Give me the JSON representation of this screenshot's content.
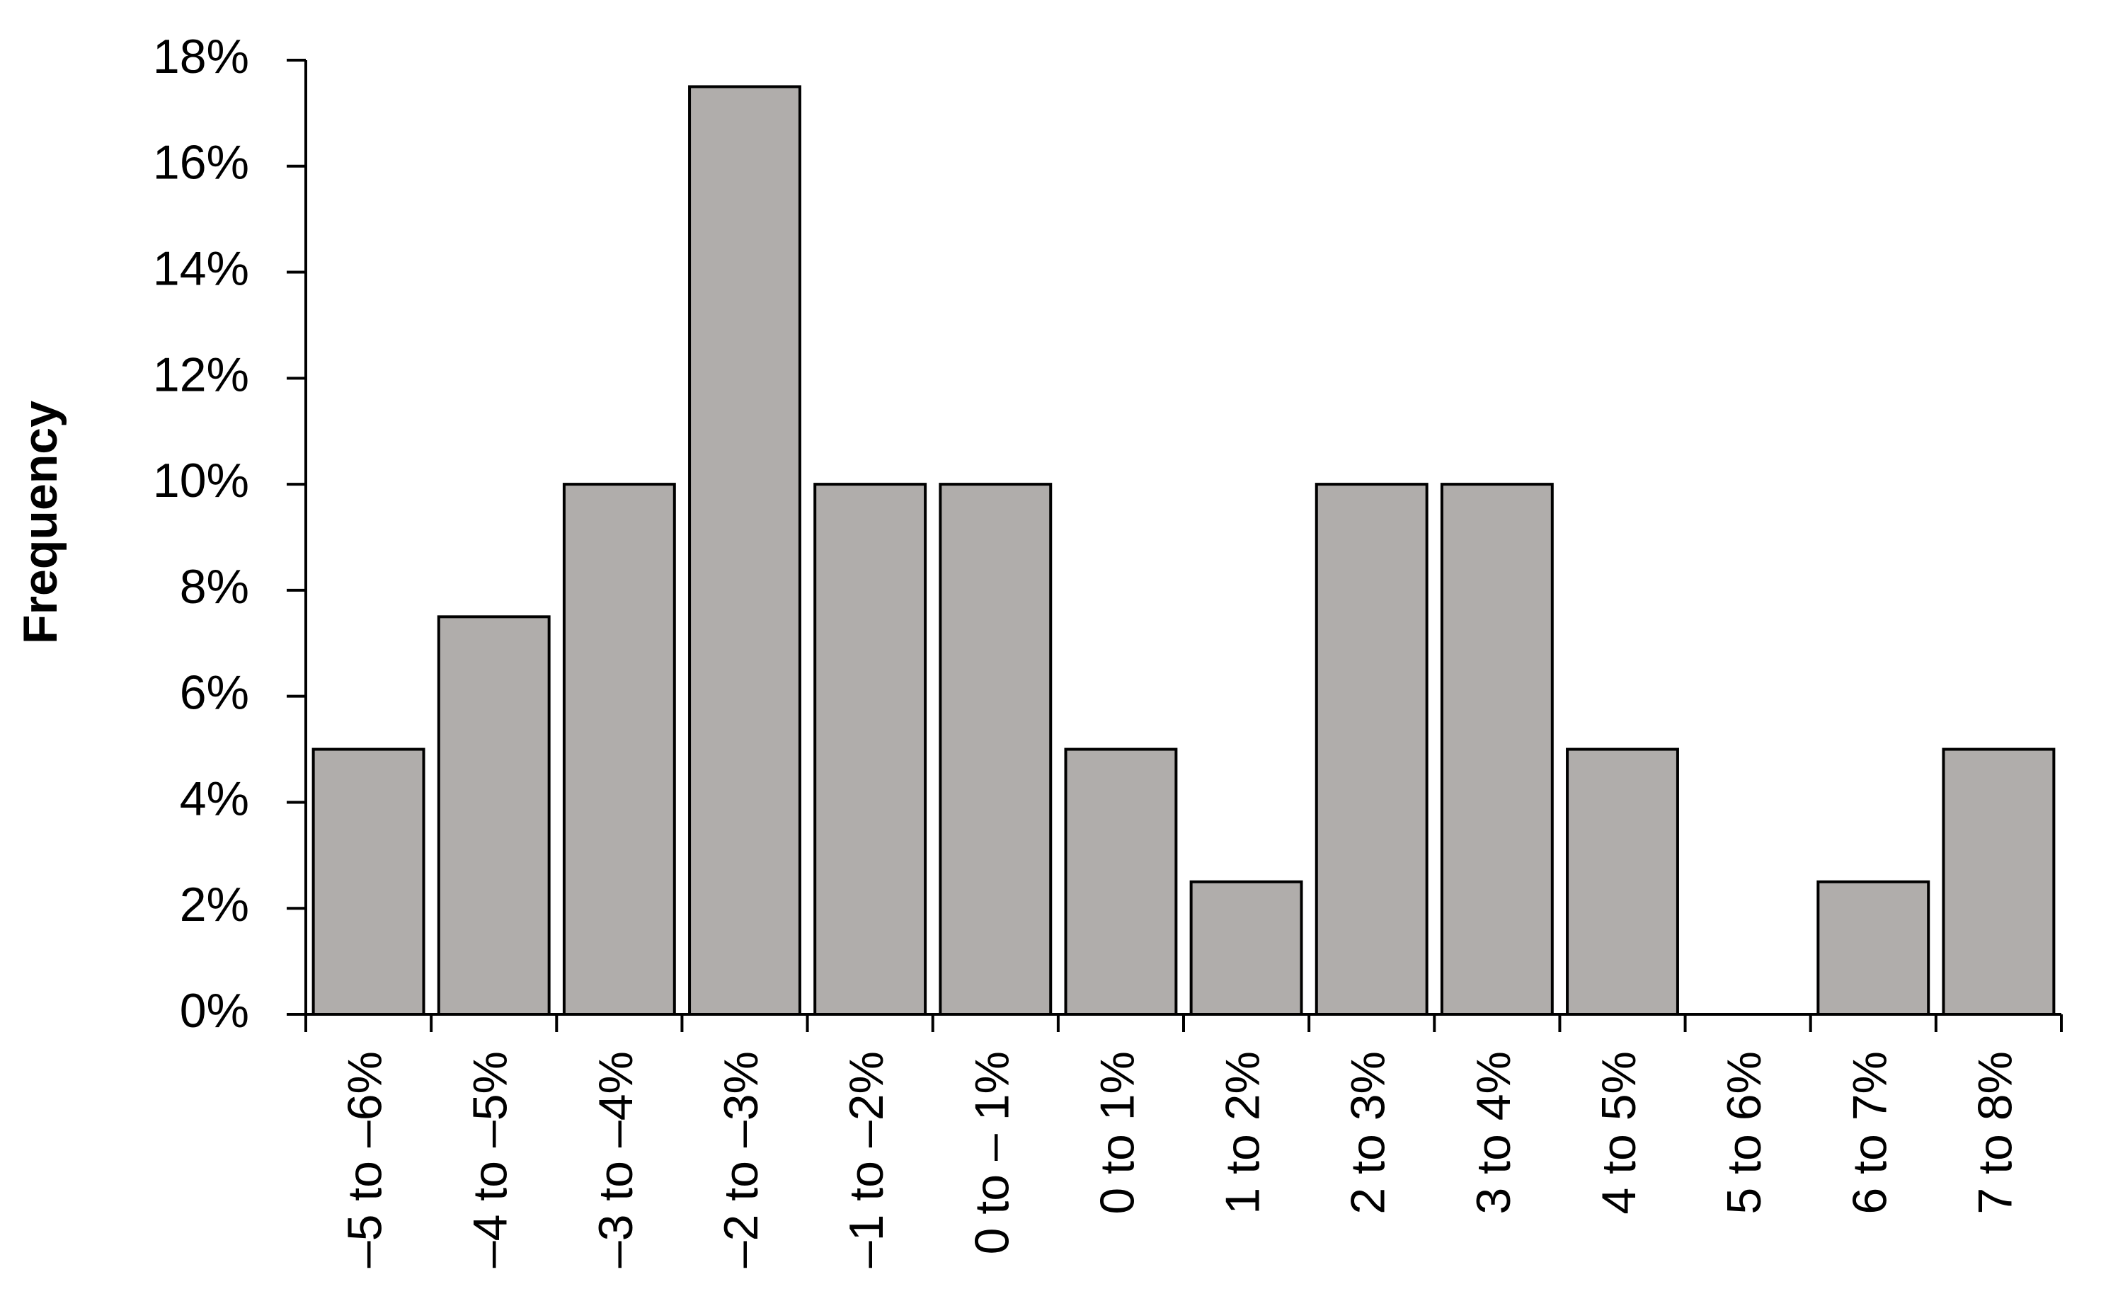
{
  "chart_data": {
    "type": "bar",
    "y_label": "Frequency",
    "categories": [
      "–5 to –6%",
      "–4 to –5%",
      "–3 to –4%",
      "–2 to –3%",
      "–1 to –2%",
      "0 to – 1%",
      "0 to 1%",
      "1 to 2%",
      "2 to 3%",
      "3 to 4%",
      "4 to 5%",
      "5 to 6%",
      "6 to 7%",
      "7 to 8%"
    ],
    "values": [
      5,
      7.5,
      10,
      17.5,
      10,
      10,
      5,
      2.5,
      10,
      10,
      5,
      0,
      2.5,
      5
    ],
    "color": "#b0adab",
    "ylim": [
      0,
      18
    ],
    "yticks": [
      {
        "value": 0,
        "label": "0%"
      },
      {
        "value": 2,
        "label": "2%"
      },
      {
        "value": 4,
        "label": "4%"
      },
      {
        "value": 6,
        "label": "6%"
      },
      {
        "value": 8,
        "label": "8%"
      },
      {
        "value": 10,
        "label": "10%"
      },
      {
        "value": 12,
        "label": "12%"
      },
      {
        "value": 14,
        "label": "14%"
      },
      {
        "value": 16,
        "label": "16%"
      },
      {
        "value": 18,
        "label": "18%"
      }
    ],
    "grid": false
  }
}
